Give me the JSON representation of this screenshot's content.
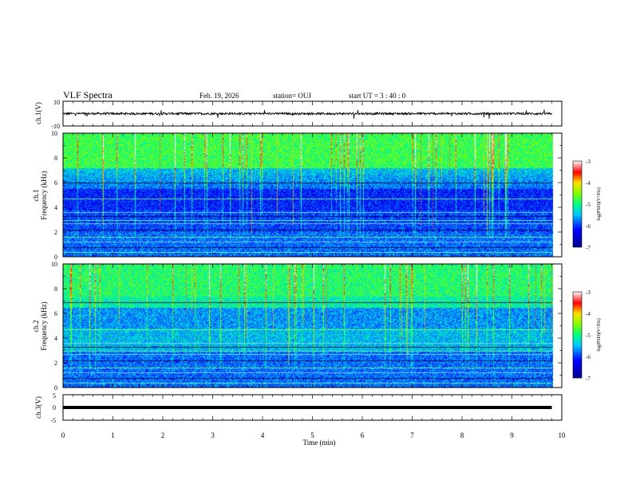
{
  "header": {
    "title": "VLF Spectra",
    "date": "Feb. 19, 2026",
    "station": "station= OUJ",
    "start": "start  UT =   3  : 40 : 0"
  },
  "chart_data": [
    {
      "type": "line",
      "name": "ch1-waveform",
      "ylabel": "ch.1(V)",
      "ylim": [
        -10,
        10
      ],
      "ytick_labels": [
        "10",
        "-10"
      ],
      "xlim": [
        0,
        10
      ],
      "x_data_end": 9.8,
      "baseline": 0,
      "noise_amplitude": 1.5
    },
    {
      "type": "heatmap",
      "name": "ch1-spectrogram",
      "ylabel_channel": "ch.1",
      "ylabel": "Frequency (kHz)",
      "ylim": [
        0,
        10
      ],
      "ytick_labels": [
        "0",
        "2",
        "4",
        "6",
        "8",
        "10"
      ],
      "xlim": [
        0,
        10
      ],
      "x_data_end": 9.8,
      "colorbar": {
        "label": "log(PSD)(V²/Hz)",
        "range": [
          -7,
          -3
        ],
        "tick_labels": [
          "-3",
          "-4",
          "-5",
          "-6",
          "-7"
        ]
      },
      "bands_khz": [
        0.4,
        0.8,
        1.2,
        1.6,
        2.2,
        2.7,
        3.0,
        3.3,
        3.6,
        4.7,
        6.0
      ]
    },
    {
      "type": "heatmap",
      "name": "ch2-spectrogram",
      "ylabel_channel": "ch.2",
      "ylabel": "Frequency (kHz)",
      "ylim": [
        0,
        10
      ],
      "ytick_labels": [
        "0",
        "2",
        "4",
        "6",
        "8",
        "10"
      ],
      "xlim": [
        0,
        10
      ],
      "x_data_end": 9.8,
      "colorbar": {
        "label": "log(PSD)(V²/Hz)",
        "range": [
          -7,
          -3
        ],
        "tick_labels": [
          "-3",
          "-4",
          "-5",
          "-6",
          "-7"
        ]
      },
      "bands_khz": [
        0.4,
        0.8,
        1.2,
        1.6,
        2.2,
        2.7,
        3.0,
        3.3,
        3.6,
        4.7,
        6.9
      ]
    },
    {
      "type": "line",
      "name": "ch3-waveform",
      "ylabel": "ch.3(V)",
      "ylim": [
        -5,
        5
      ],
      "ytick_labels": [
        "5",
        "0",
        "-5"
      ],
      "xlim": [
        0,
        10
      ],
      "x_data_end": 9.8,
      "baseline": 0,
      "xlabel": "Time (min)",
      "xtick_labels": [
        "0",
        "1",
        "2",
        "3",
        "4",
        "5",
        "6",
        "7",
        "8",
        "9",
        "10"
      ]
    }
  ]
}
